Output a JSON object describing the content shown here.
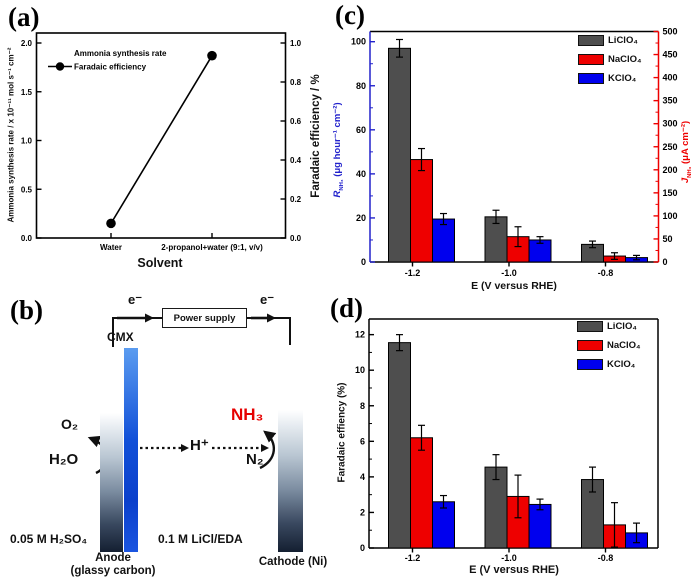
{
  "figure": {
    "panel_labels": {
      "a": "(a)",
      "b": "(b)",
      "c": "(c)",
      "d": "(d)"
    }
  },
  "panel_b": {
    "power_supply": "Power supply",
    "electron_left": "e⁻",
    "electron_right": "e⁻",
    "membrane_label": "CMX",
    "o2": "O₂",
    "h2o": "H₂O",
    "h_plus": "H⁺",
    "nh3": "NH₃",
    "n2": "N₂",
    "anolyte": "0.05 M H₂SO₄",
    "catholyte": "0.1 M LiCl/EDA",
    "anode_line1": "Anode",
    "anode_line2": "(glassy carbon)",
    "cathode_label": "Cathode (Ni)",
    "colors": {
      "nh3_text": "#e60000",
      "membrane_blue": "#1150d8",
      "electrode_dark": "#141f31"
    }
  },
  "chart_data": [
    {
      "panel": "a",
      "type": "line",
      "x_categories": [
        "Water",
        "2-propanol+water (9:1, v/v)"
      ],
      "xlabel": "Solvent",
      "ylabel_left": "Ammonia synthesis rate / x 10⁻¹¹ mol s⁻¹ cm⁻²",
      "ylabel_right": "Faradaic efficiency / %",
      "yticks_left": [
        "0.0",
        "0.5",
        "1.0",
        "1.5",
        "2.0"
      ],
      "yticks_right": [
        "0.0",
        "0.2",
        "0.4",
        "0.6",
        "0.8",
        "1.0"
      ],
      "ylim_left": [
        0,
        2.1
      ],
      "ylim_right": [
        0,
        1.05
      ],
      "grid": false,
      "legend_position": "top-left",
      "marker": "filled-circle",
      "line_color": "#000000",
      "series": [
        {
          "name": "Ammonia synthesis rate",
          "axis": "left",
          "values": [
            0.15,
            1.87
          ]
        },
        {
          "name": "Faradaic efficiency",
          "axis": "right",
          "values": [
            0.08,
            0.92
          ]
        }
      ]
    },
    {
      "panel": "c",
      "type": "bar",
      "categories": [
        "-1.2",
        "-1.0",
        "-0.8"
      ],
      "xlabel": "E (V versus RHE)",
      "ylabel_left": "R_NH₃ (μg hour⁻¹ cm⁻²)",
      "ylabel_left_parts": {
        "symbol": "R",
        "sub": "NH₃",
        "units": " (μg hour⁻¹ cm⁻²)"
      },
      "ylabel_right": "J_NH₃ (μA cm⁻²)",
      "ylabel_right_parts": {
        "symbol": "J",
        "sub": "NH₃",
        "units": " (μA cm⁻²)"
      },
      "yticks_left": [
        "0",
        "20",
        "40",
        "60",
        "80",
        "100"
      ],
      "yticks_right": [
        "0",
        "50",
        "100",
        "150",
        "200",
        "250",
        "300",
        "350",
        "400",
        "450",
        "500"
      ],
      "ylim_left": [
        0,
        104.5
      ],
      "ylim_right": [
        0,
        500
      ],
      "axis_color_left": "#2222cc",
      "axis_color_right": "#ee0000",
      "grid": false,
      "legend_position": "top-right",
      "series": [
        {
          "name": "LiClO₄",
          "color": "#4e4e4e",
          "values": [
            97,
            20.5,
            8
          ],
          "errors": [
            4,
            3,
            1.5
          ]
        },
        {
          "name": "NaClO₄",
          "color": "#ee0000",
          "values": [
            46.5,
            11.5,
            2.7
          ],
          "errors": [
            5,
            4.5,
            1.5
          ]
        },
        {
          "name": "KClO₄",
          "color": "#0000ee",
          "values": [
            19.5,
            10,
            2
          ],
          "errors": [
            2.5,
            1.5,
            1
          ]
        }
      ]
    },
    {
      "panel": "d",
      "type": "bar",
      "categories": [
        "-1.2",
        "-1.0",
        "-0.8"
      ],
      "xlabel": "E (V versus RHE)",
      "ylabel": "Faradaic effiency (%)",
      "yticks": [
        "0",
        "2",
        "4",
        "6",
        "8",
        "10",
        "12"
      ],
      "ylim": [
        0,
        12.9
      ],
      "axis_color": "#000000",
      "grid": false,
      "legend_position": "top-right",
      "series": [
        {
          "name": "LiClO₄",
          "color": "#4e4e4e",
          "values": [
            11.55,
            4.55,
            3.85
          ],
          "errors": [
            0.45,
            0.7,
            0.7
          ]
        },
        {
          "name": "NaClO₄",
          "color": "#ee0000",
          "values": [
            6.2,
            2.9,
            1.3
          ],
          "errors": [
            0.7,
            1.2,
            1.25
          ]
        },
        {
          "name": "KClO₄",
          "color": "#0000ee",
          "values": [
            2.6,
            2.45,
            0.85
          ],
          "errors": [
            0.35,
            0.3,
            0.55
          ]
        }
      ]
    }
  ]
}
